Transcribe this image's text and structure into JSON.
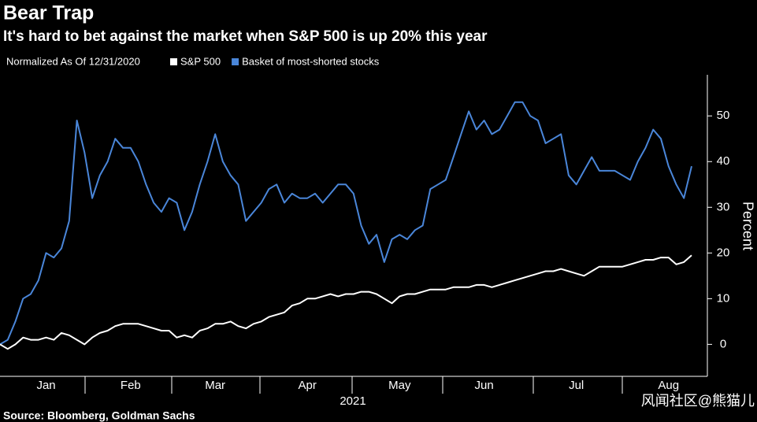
{
  "chart_data": {
    "type": "line",
    "title": "Bear Trap",
    "subtitle": "It's hard to bet against the market when S&P 500 is up 20% this year",
    "legend_title": "Normalized As Of 12/31/2020",
    "ylabel": "Percent",
    "xlabel": "2021",
    "source": "Source: Bloomberg, Goldman Sachs",
    "watermark": "风闻社区@熊猫儿",
    "categories": [
      null,
      null,
      null,
      null,
      null,
      null,
      "Jan",
      null,
      null,
      null,
      null,
      null,
      null,
      null,
      null,
      null,
      null,
      "Feb",
      null,
      null,
      null,
      null,
      null,
      null,
      null,
      null,
      null,
      null,
      "Mar",
      null,
      null,
      null,
      null,
      null,
      null,
      null,
      null,
      null,
      null,
      null,
      "Apr",
      null,
      null,
      null,
      null,
      null,
      null,
      null,
      null,
      null,
      null,
      null,
      "May",
      null,
      null,
      null,
      null,
      null,
      null,
      null,
      null,
      null,
      null,
      "Jun",
      null,
      null,
      null,
      null,
      null,
      null,
      null,
      null,
      null,
      null,
      null,
      "Jul",
      null,
      null,
      null,
      null,
      null,
      null,
      null,
      null,
      null,
      null,
      null,
      "Aug",
      null,
      null,
      null
    ],
    "series": [
      {
        "name": "S&P 500",
        "color": "#ffffff",
        "values": [
          0,
          -1,
          0,
          1.5,
          1,
          1,
          1.5,
          1,
          2.5,
          2,
          1,
          0,
          1.5,
          2.5,
          3,
          4,
          4.5,
          4.5,
          4.5,
          4,
          3.5,
          3,
          3,
          1.5,
          2,
          1.5,
          3,
          3.5,
          4.5,
          4.5,
          5,
          4,
          3.5,
          4.5,
          5,
          6,
          6.5,
          7,
          8.5,
          9,
          10,
          10,
          10.5,
          11,
          10.5,
          11,
          11,
          11.5,
          11.5,
          11,
          10,
          9,
          10.5,
          11,
          11,
          11.5,
          12,
          12,
          12,
          12.5,
          12.5,
          12.5,
          13,
          13,
          12.5,
          13,
          13.5,
          14,
          14.5,
          15,
          15.5,
          16,
          16,
          16.5,
          16,
          15.5,
          15,
          16,
          17,
          17,
          17,
          17,
          17.5,
          18,
          18.5,
          18.5,
          19,
          19,
          17.5,
          18,
          19.5
        ]
      },
      {
        "name": "Basket of most-shorted stocks",
        "color": "#4a86d9",
        "values": [
          0,
          1,
          5,
          10,
          11,
          14,
          20,
          19,
          21,
          27,
          49,
          42,
          32,
          37,
          40,
          45,
          43,
          43,
          40,
          35,
          31,
          29,
          32,
          31,
          25,
          29,
          35,
          40,
          46,
          40,
          37,
          35,
          27,
          29,
          31,
          34,
          35,
          31,
          33,
          32,
          32,
          33,
          31,
          33,
          35,
          35,
          33,
          26,
          22,
          24,
          18,
          23,
          24,
          23,
          25,
          26,
          34,
          35,
          36,
          41,
          46,
          51,
          47,
          49,
          46,
          47,
          50,
          53,
          53,
          50,
          49,
          44,
          45,
          46,
          37,
          35,
          38,
          41,
          38,
          38,
          38,
          37,
          36,
          40,
          43,
          47,
          45,
          39,
          35,
          32,
          39
        ]
      }
    ],
    "ylim": [
      -7,
      59
    ],
    "yticks": [
      0,
      10,
      20,
      30,
      40,
      50
    ]
  }
}
